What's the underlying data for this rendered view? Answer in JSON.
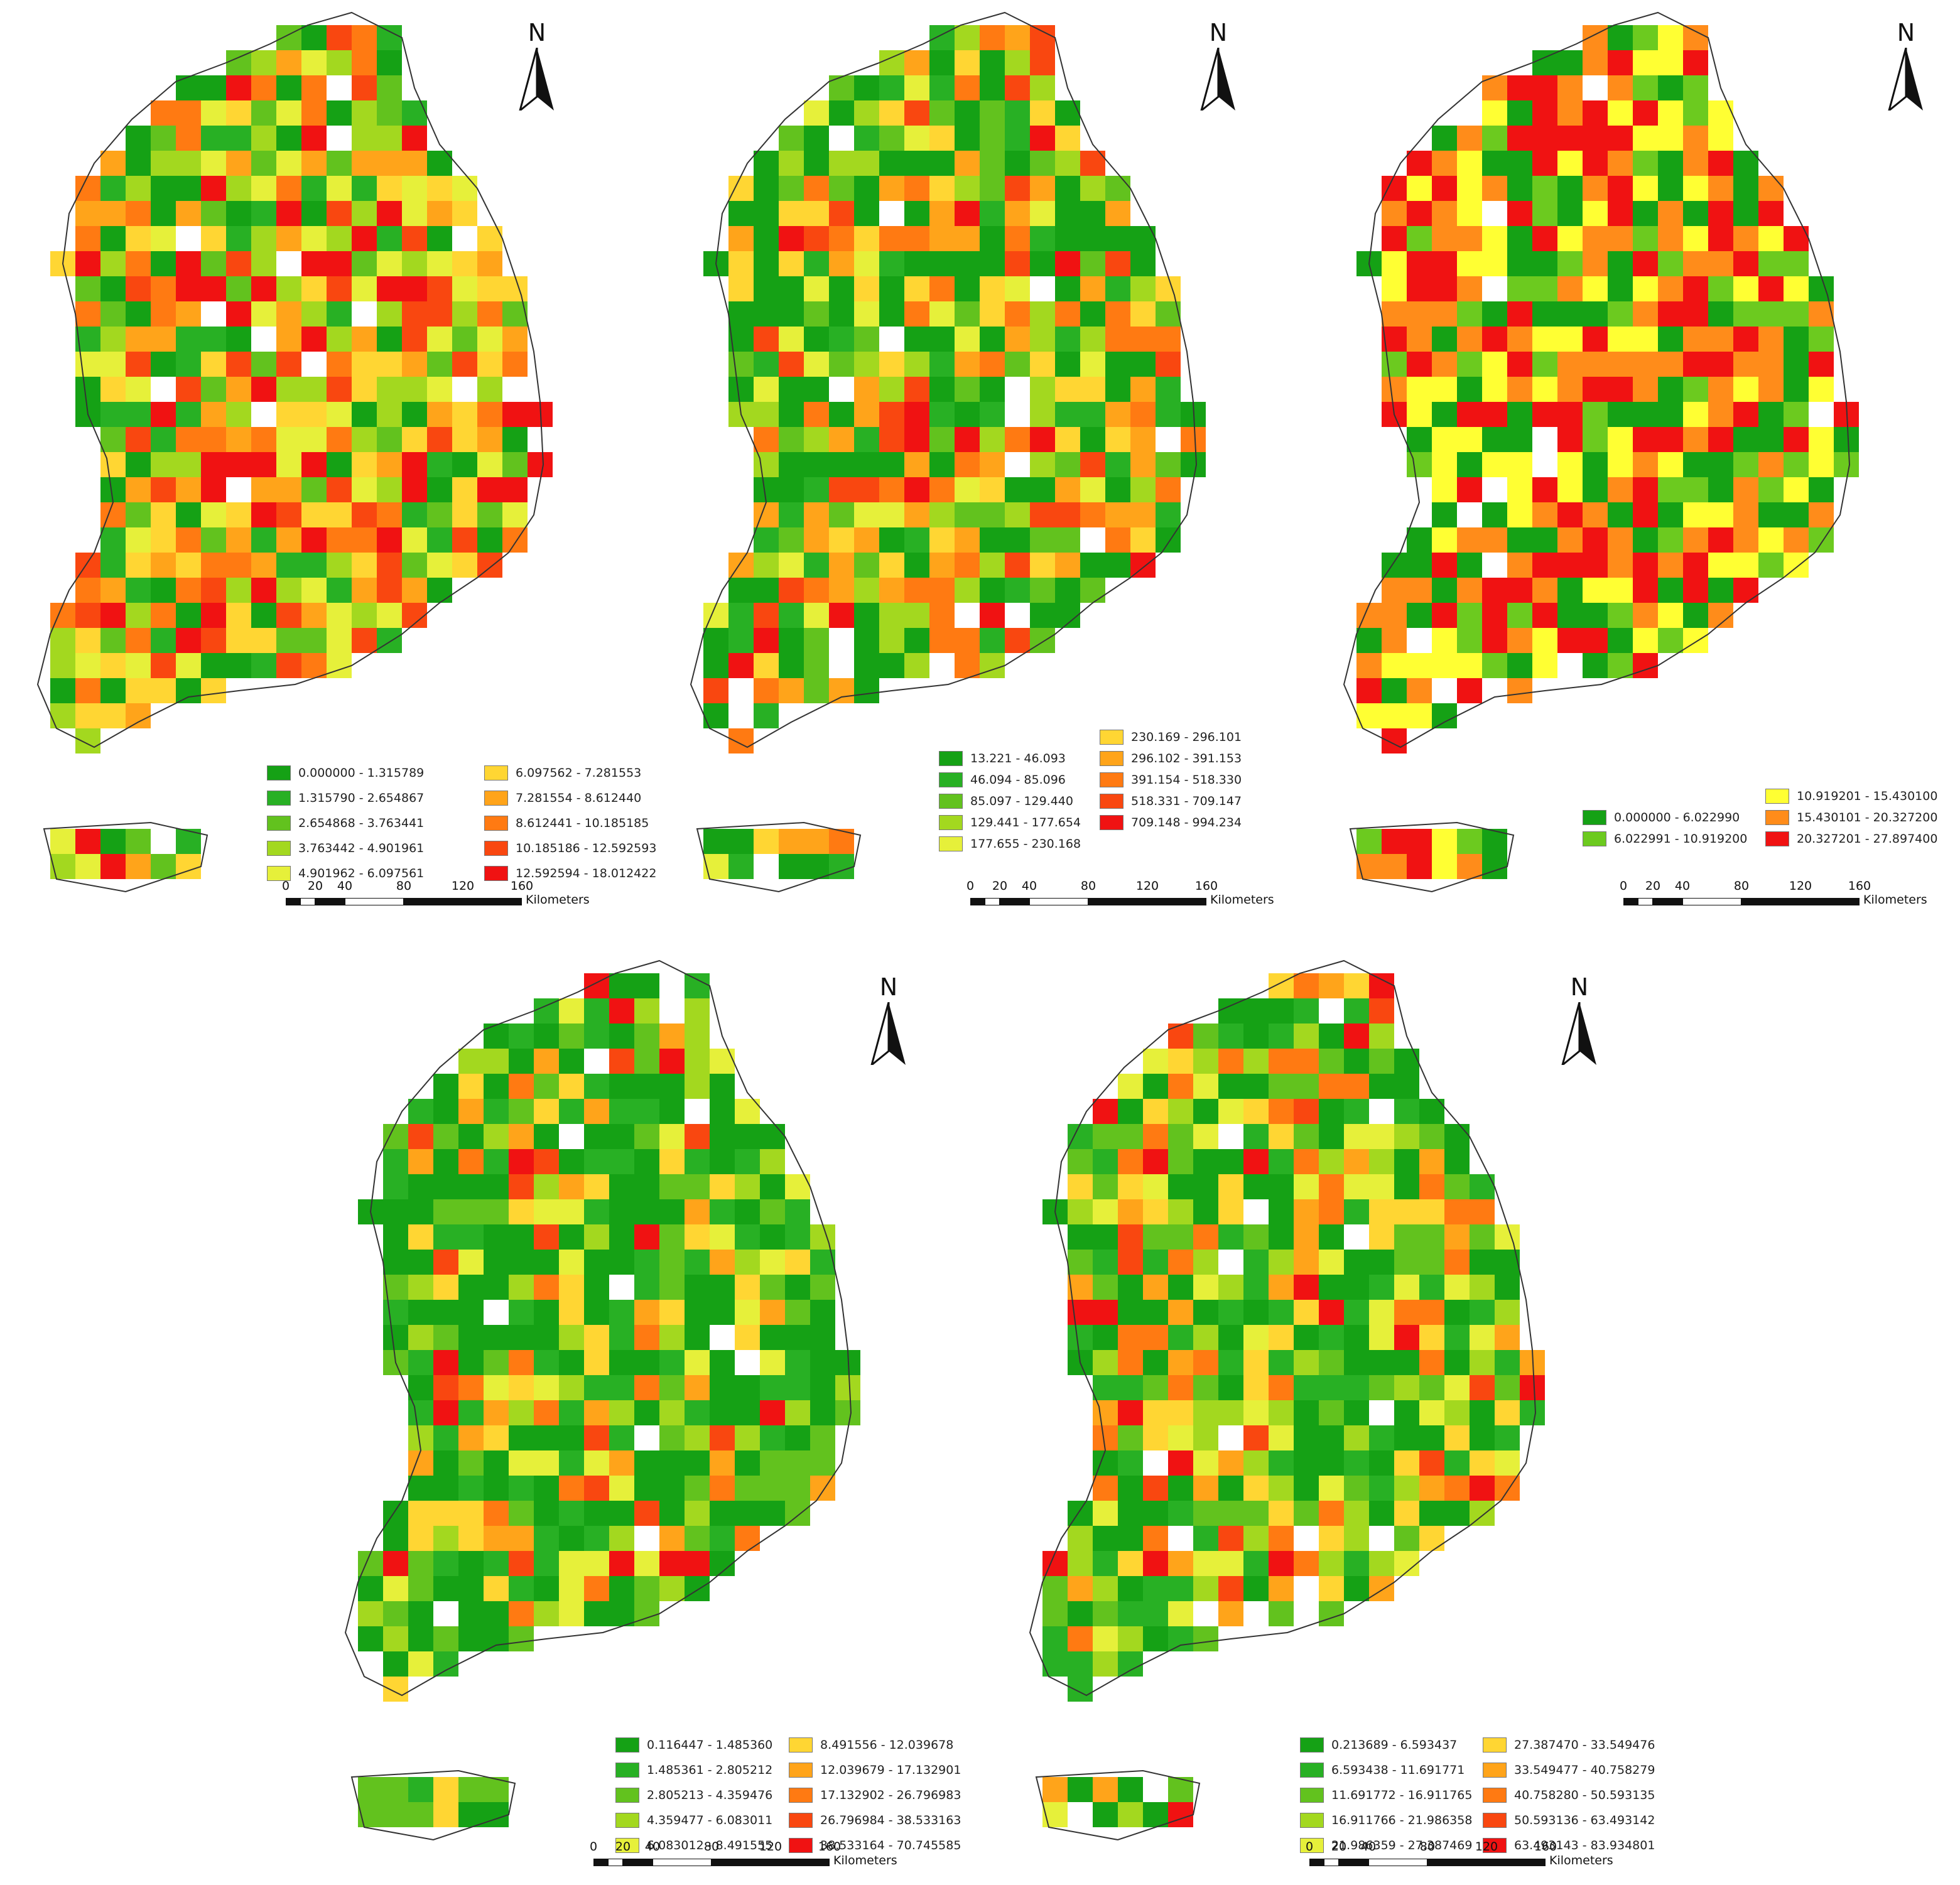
{
  "colors": {
    "ramp10": [
      "#15a115",
      "#28b024",
      "#62c21e",
      "#a3d81f",
      "#e6f03a",
      "#ffd633",
      "#ffa41a",
      "#ff7a12",
      "#f94710",
      "#f01212"
    ],
    "ramp6": [
      "#15a115",
      "#6cca1f",
      "#ffff33",
      "#ff8c1a",
      "#f01212"
    ]
  },
  "panels": [
    {
      "id": "p1",
      "north_label": "N",
      "map_seed": 11,
      "weights": [
        13,
        9,
        9,
        10,
        10,
        10,
        10,
        10,
        10,
        9
      ],
      "legend": [
        {
          "label": "0.000000 - 1.315789",
          "color": "#15a115"
        },
        {
          "label": "1.315790 - 2.654867",
          "color": "#28b024"
        },
        {
          "label": "2.654868 - 3.763441",
          "color": "#62c21e"
        },
        {
          "label": "3.763442 - 4.901961",
          "color": "#a3d81f"
        },
        {
          "label": "4.901962 - 6.097561",
          "color": "#e6f03a"
        },
        {
          "label": "6.097562 - 7.281553",
          "color": "#ffd633"
        },
        {
          "label": "7.281554 - 8.612440",
          "color": "#ffa41a"
        },
        {
          "label": "8.612441 - 10.185185",
          "color": "#ff7a12"
        },
        {
          "label": "10.185186 - 12.592593",
          "color": "#f94710"
        },
        {
          "label": "12.592594 - 18.012422",
          "color": "#f01212"
        }
      ],
      "scale": {
        "ticks": [
          "0",
          "20",
          "40",
          "80",
          "120",
          "160"
        ],
        "unit": "Kilometers"
      }
    },
    {
      "id": "p2",
      "north_label": "N",
      "map_seed": 23,
      "weights": [
        26,
        12,
        9,
        8,
        7,
        8,
        9,
        9,
        7,
        5
      ],
      "legend": [
        {
          "label": "13.221 - 46.093",
          "color": "#15a115"
        },
        {
          "label": "46.094 - 85.096",
          "color": "#28b024"
        },
        {
          "label": "85.097 - 129.440",
          "color": "#62c21e"
        },
        {
          "label": "129.441 - 177.654",
          "color": "#a3d81f"
        },
        {
          "label": "177.655 - 230.168",
          "color": "#e6f03a"
        },
        {
          "label": "230.169 - 296.101",
          "color": "#ffd633"
        },
        {
          "label": "296.102 - 391.153",
          "color": "#ffa41a"
        },
        {
          "label": "391.154 - 518.330",
          "color": "#ff7a12"
        },
        {
          "label": "518.331 - 709.147",
          "color": "#f94710"
        },
        {
          "label": "709.148 - 994.234",
          "color": "#f01212"
        }
      ],
      "scale": {
        "ticks": [
          "0",
          "20",
          "40",
          "80",
          "120",
          "160"
        ],
        "unit": "Kilometers"
      }
    },
    {
      "id": "p3",
      "north_label": "N",
      "map_seed": 37,
      "weights": [
        22,
        14,
        22,
        22,
        20
      ],
      "legend": [
        {
          "label": "0.000000 - 6.022990",
          "color": "#15a115"
        },
        {
          "label": "6.022991 - 10.919200",
          "color": "#6cca1f"
        },
        {
          "label": "10.919201 - 15.430100",
          "color": "#ffff33"
        },
        {
          "label": "15.430101 - 20.327200",
          "color": "#ff8c1a"
        },
        {
          "label": "20.327201 - 27.897400",
          "color": "#f01212"
        }
      ],
      "scale": {
        "ticks": [
          "0",
          "20",
          "40",
          "80",
          "120",
          "160"
        ],
        "unit": "Kilometers"
      }
    },
    {
      "id": "p4",
      "north_label": "N",
      "map_seed": 41,
      "weights": [
        30,
        14,
        12,
        10,
        10,
        9,
        6,
        4,
        3,
        2
      ],
      "legend": [
        {
          "label": "0.116447 - 1.485360",
          "color": "#15a115"
        },
        {
          "label": "1.485361 - 2.805212",
          "color": "#28b024"
        },
        {
          "label": "2.805213 - 4.359476",
          "color": "#62c21e"
        },
        {
          "label": "4.359477 - 6.083011",
          "color": "#a3d81f"
        },
        {
          "label": "6.083012 - 8.491555",
          "color": "#e6f03a"
        },
        {
          "label": "8.491556 - 12.039678",
          "color": "#ffd633"
        },
        {
          "label": "12.039679 - 17.132901",
          "color": "#ffa41a"
        },
        {
          "label": "17.132902 - 26.796983",
          "color": "#ff7a12"
        },
        {
          "label": "26.796984 - 38.533163",
          "color": "#f94710"
        },
        {
          "label": "38.533164 - 70.745585",
          "color": "#f01212"
        }
      ],
      "scale": {
        "ticks": [
          "0",
          "20",
          "40",
          "80",
          "120",
          "160"
        ],
        "unit": "Kilometers"
      }
    },
    {
      "id": "p5",
      "north_label": "N",
      "map_seed": 59,
      "weights": [
        20,
        12,
        11,
        10,
        10,
        9,
        9,
        8,
        6,
        5
      ],
      "legend": [
        {
          "label": "0.213689 - 6.593437",
          "color": "#15a115"
        },
        {
          "label": "6.593438 - 11.691771",
          "color": "#28b024"
        },
        {
          "label": "11.691772 - 16.911765",
          "color": "#62c21e"
        },
        {
          "label": "16.911766 - 21.986358",
          "color": "#a3d81f"
        },
        {
          "label": "21.986359 - 27.387469",
          "color": "#e6f03a"
        },
        {
          "label": "27.387470 - 33.549476",
          "color": "#ffd633"
        },
        {
          "label": "33.549477 - 40.758279",
          "color": "#ffa41a"
        },
        {
          "label": "40.758280 - 50.593135",
          "color": "#ff7a12"
        },
        {
          "label": "50.593136 - 63.493142",
          "color": "#f94710"
        },
        {
          "label": "63.493143 - 83.934801",
          "color": "#f01212"
        }
      ],
      "scale": {
        "ticks": [
          "0",
          "20",
          "40",
          "80",
          "120",
          "160"
        ],
        "unit": "Kilometers"
      }
    }
  ]
}
